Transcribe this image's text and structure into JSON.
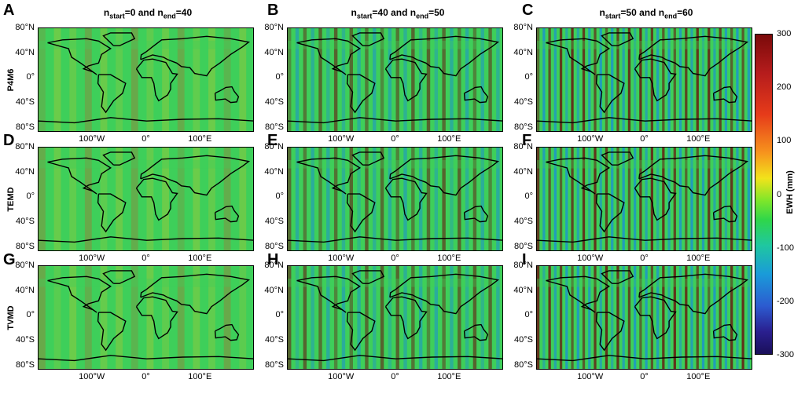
{
  "panel_letters": [
    "A",
    "B",
    "C",
    "D",
    "E",
    "F",
    "G",
    "H",
    "I"
  ],
  "columns": [
    {
      "title_prefix": "n",
      "title_sub1": "start",
      "title_mid": "=0 and n",
      "title_sub2": "end",
      "title_suffix": "=40"
    },
    {
      "title_prefix": "n",
      "title_sub1": "start",
      "title_mid": "=40 and n",
      "title_sub2": "end",
      "title_suffix": "=50"
    },
    {
      "title_prefix": "n",
      "title_sub1": "start",
      "title_mid": "=50 and n",
      "title_sub2": "end",
      "title_suffix": "=60"
    }
  ],
  "rows": [
    "P4M6",
    "TEMD",
    "TVMD"
  ],
  "y_ticks": [
    "80°N",
    "40°N",
    "0°",
    "40°S",
    "80°S"
  ],
  "x_ticks": [
    "100°W",
    "0°",
    "100°E"
  ],
  "colorbar": {
    "label": "EWH (mm)",
    "ticks": [
      "300",
      "200",
      "100",
      "0",
      "-100",
      "-200",
      "-300"
    ],
    "colors": {
      "max": "#7a0a0a",
      "mid": "#2fd64a",
      "min": "#1a0f5a"
    }
  }
}
